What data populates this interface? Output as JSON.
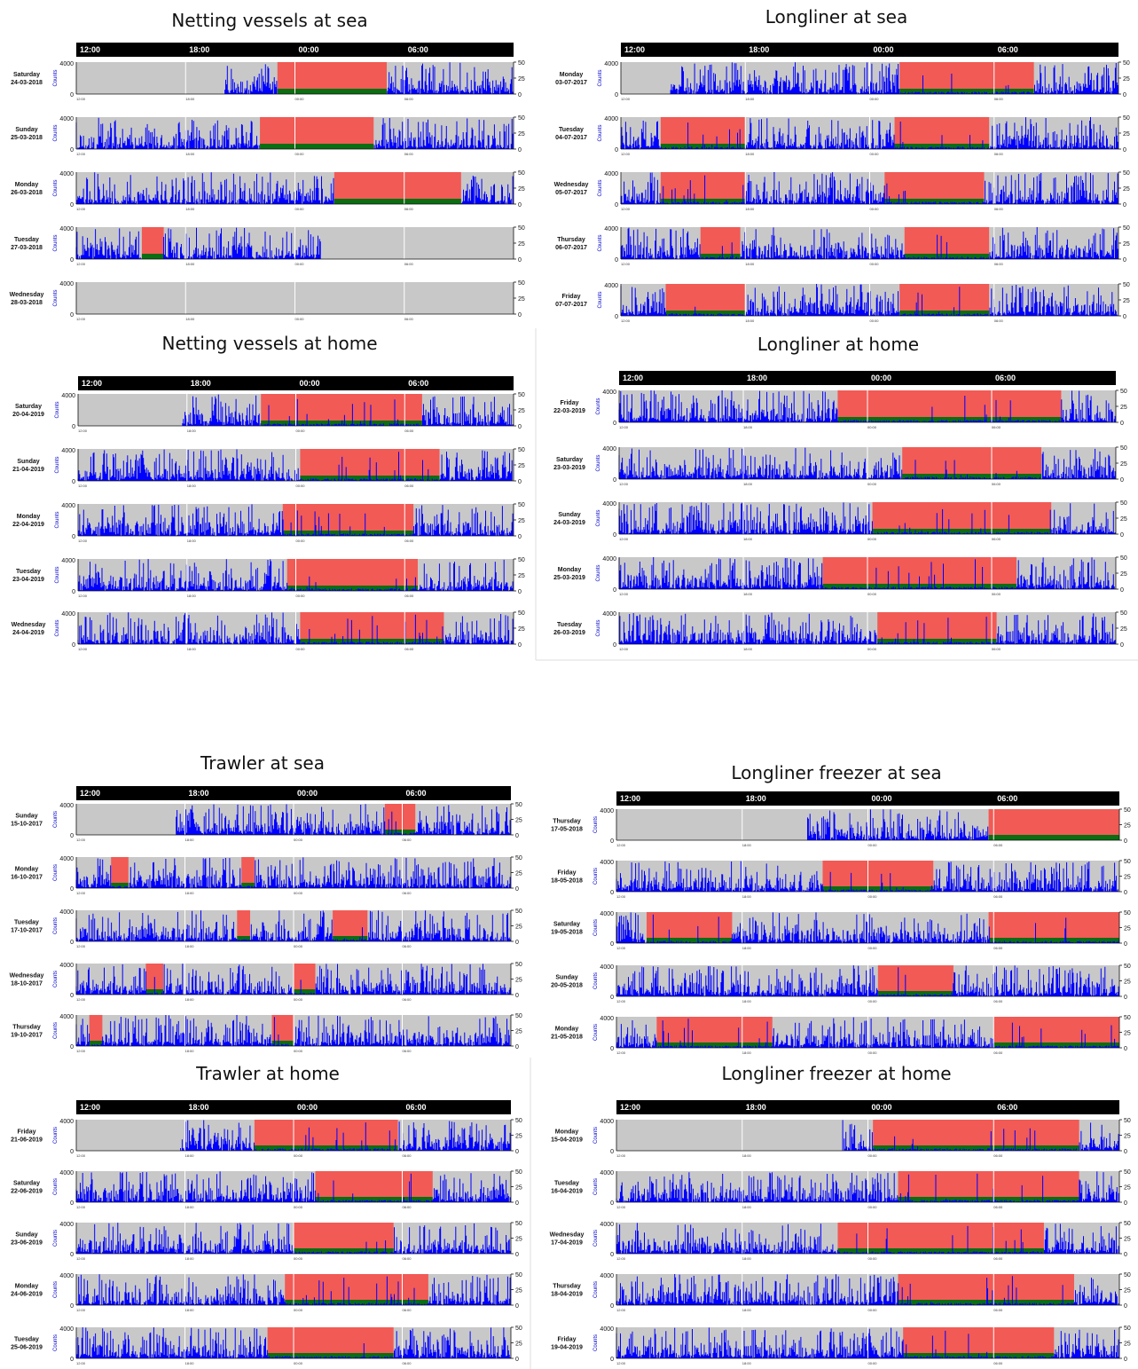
{
  "chart_data": [
    {
      "type": "area",
      "title": "Netting vessels at sea",
      "header_ticks": [
        "12:00",
        "18:00",
        "00:00",
        "06:00"
      ],
      "x_ticks": [
        "12:00",
        "18:00",
        "00:00",
        "06:00"
      ],
      "ylabel": "Counts",
      "ylim": [
        0,
        4000
      ],
      "y_ticks": [
        "0",
        "4000"
      ],
      "right_ylim": [
        0,
        50
      ],
      "right_ticks": [
        "0",
        "25",
        "50"
      ],
      "legend": null,
      "days": [
        {
          "weekday": "Saturday",
          "date": "24-03-2018",
          "night": [
            0.46,
            0.71
          ],
          "activity": [
            [
              0.34,
              0.46
            ],
            [
              0.71,
              1.0
            ]
          ]
        },
        {
          "weekday": "Sunday",
          "date": "25-03-2018",
          "night": [
            0.42,
            0.68
          ],
          "activity": [
            [
              0.0,
              0.42
            ],
            [
              0.68,
              1.0
            ]
          ]
        },
        {
          "weekday": "Monday",
          "date": "26-03-2018",
          "night": [
            0.59,
            0.88
          ],
          "activity": [
            [
              0.0,
              0.59
            ],
            [
              0.88,
              1.0
            ]
          ]
        },
        {
          "weekday": "Tuesday",
          "date": "27-03-2018",
          "night": [
            0.15,
            0.2
          ],
          "activity": [
            [
              0.0,
              0.15
            ],
            [
              0.2,
              0.56
            ]
          ]
        },
        {
          "weekday": "Wednesday",
          "date": "28-03-2018",
          "night": null,
          "activity": []
        }
      ]
    },
    {
      "type": "area",
      "title": "Longliner at sea",
      "header_ticks": [
        "12:00",
        "18:00",
        "00:00",
        "06:00"
      ],
      "x_ticks": [
        "12:00",
        "18:00",
        "00:00",
        "06:00"
      ],
      "ylabel": "Counts",
      "ylim": [
        0,
        4000
      ],
      "y_ticks": [
        "0",
        "4000"
      ],
      "right_ylim": [
        0,
        50
      ],
      "right_ticks": [
        "0",
        "25",
        "50"
      ],
      "legend": null,
      "days": [
        {
          "weekday": "Monday",
          "date": "03-07-2017",
          "night": [
            0.56,
            0.83
          ],
          "activity": [
            [
              0.1,
              1.0
            ]
          ]
        },
        {
          "weekday": "Tuesday",
          "date": "04-07-2017",
          "night": [
            0.08,
            0.25
          ],
          "activity": [
            [
              0.0,
              1.0
            ]
          ],
          "night2": [
            0.55,
            0.74
          ]
        },
        {
          "weekday": "Wednesday",
          "date": "05-07-2017",
          "night": [
            0.08,
            0.25
          ],
          "activity": [
            [
              0.0,
              1.0
            ]
          ],
          "night2": [
            0.53,
            0.73
          ]
        },
        {
          "weekday": "Thursday",
          "date": "06-07-2017",
          "night": [
            0.16,
            0.24
          ],
          "activity": [
            [
              0.0,
              1.0
            ]
          ],
          "night2": [
            0.57,
            0.74
          ]
        },
        {
          "weekday": "Friday",
          "date": "07-07-2017",
          "night": [
            0.09,
            0.25
          ],
          "activity": [
            [
              0.0,
              1.0
            ]
          ],
          "night2": [
            0.56,
            0.74
          ]
        }
      ]
    },
    {
      "type": "area",
      "title": "Netting vessels at home",
      "header_ticks": [
        "12:00",
        "18:00",
        "00:00",
        "06:00"
      ],
      "x_ticks": [
        "12:00",
        "18:00",
        "00:00",
        "06:00"
      ],
      "ylabel": "Counts",
      "ylim": [
        0,
        4000
      ],
      "y_ticks": [
        "0",
        "4000"
      ],
      "right_ylim": [
        0,
        50
      ],
      "right_ticks": [
        "0",
        "25",
        "50"
      ],
      "legend": null,
      "days": [
        {
          "weekday": "Saturday",
          "date": "20-04-2019",
          "night": [
            0.42,
            0.79
          ],
          "activity": [
            [
              0.24,
              1.0
            ]
          ]
        },
        {
          "weekday": "Sunday",
          "date": "21-04-2019",
          "night": [
            0.51,
            0.83
          ],
          "activity": [
            [
              0.0,
              1.0
            ]
          ]
        },
        {
          "weekday": "Monday",
          "date": "22-04-2019",
          "night": [
            0.47,
            0.77
          ],
          "activity": [
            [
              0.0,
              1.0
            ]
          ]
        },
        {
          "weekday": "Tuesday",
          "date": "23-04-2019",
          "night": [
            0.48,
            0.78
          ],
          "activity": [
            [
              0.0,
              1.0
            ]
          ]
        },
        {
          "weekday": "Wednesday",
          "date": "24-04-2019",
          "night": [
            0.51,
            0.84
          ],
          "activity": [
            [
              0.0,
              1.0
            ]
          ]
        }
      ]
    },
    {
      "type": "area",
      "title": "Longliner at home",
      "header_ticks": [
        "12:00",
        "18:00",
        "00:00",
        "06:00"
      ],
      "x_ticks": [
        "12:00",
        "18:00",
        "00:00",
        "06:00"
      ],
      "ylabel": "Counts",
      "ylim": [
        0,
        4000
      ],
      "y_ticks": [
        "0",
        "4000"
      ],
      "right_ylim": [
        0,
        50
      ],
      "right_ticks": [
        "0",
        "25",
        "50"
      ],
      "legend": null,
      "days": [
        {
          "weekday": "Friday",
          "date": "22-03-2019",
          "night": [
            0.44,
            0.89
          ],
          "activity": [
            [
              0.0,
              1.0
            ]
          ]
        },
        {
          "weekday": "Saturday",
          "date": "23-03-2019",
          "night": [
            0.57,
            0.85
          ],
          "activity": [
            [
              0.0,
              1.0
            ]
          ]
        },
        {
          "weekday": "Sunday",
          "date": "24-03-2019",
          "night": [
            0.51,
            0.87
          ],
          "activity": [
            [
              0.0,
              1.0
            ]
          ]
        },
        {
          "weekday": "Monday",
          "date": "25-03-2019",
          "night": [
            0.41,
            0.8
          ],
          "activity": [
            [
              0.0,
              1.0
            ]
          ]
        },
        {
          "weekday": "Tuesday",
          "date": "26-03-2019",
          "night": [
            0.52,
            0.76
          ],
          "activity": [
            [
              0.0,
              1.0
            ]
          ]
        }
      ]
    },
    {
      "type": "area",
      "title": "Trawler at sea",
      "header_ticks": [
        "12:00",
        "18:00",
        "00:00",
        "06:00"
      ],
      "x_ticks": [
        "12:00",
        "18:00",
        "00:00",
        "06:00"
      ],
      "ylabel": "Counts",
      "ylim": [
        0,
        4000
      ],
      "y_ticks": [
        "0",
        "4000"
      ],
      "right_ylim": [
        0,
        50
      ],
      "right_ticks": [
        "0",
        "25",
        "50"
      ],
      "legend": null,
      "days": [
        {
          "weekday": "Sunday",
          "date": "15-10-2017",
          "night": [
            0.71,
            0.78
          ],
          "activity": [
            [
              0.23,
              1.0
            ]
          ]
        },
        {
          "weekday": "Monday",
          "date": "16-10-2017",
          "night": [
            0.08,
            0.12
          ],
          "activity": [
            [
              0.0,
              1.0
            ]
          ],
          "night2": [
            0.38,
            0.41
          ]
        },
        {
          "weekday": "Tuesday",
          "date": "17-10-2017",
          "night": [
            0.37,
            0.4
          ],
          "activity": [
            [
              0.0,
              1.0
            ]
          ],
          "night2": [
            0.59,
            0.67
          ]
        },
        {
          "weekday": "Wednesday",
          "date": "18-10-2017",
          "night": [
            0.16,
            0.2
          ],
          "activity": [
            [
              0.0,
              1.0
            ]
          ],
          "night2": [
            0.5,
            0.55
          ]
        },
        {
          "weekday": "Thursday",
          "date": "19-10-2017",
          "night": [
            0.03,
            0.06
          ],
          "activity": [
            [
              0.0,
              1.0
            ]
          ],
          "night2": [
            0.45,
            0.5
          ]
        }
      ]
    },
    {
      "type": "area",
      "title": "Longliner freezer at sea",
      "header_ticks": [
        "12:00",
        "18:00",
        "00:00",
        "06:00"
      ],
      "x_ticks": [
        "12:00",
        "18:00",
        "00:00",
        "06:00"
      ],
      "ylabel": "Counts",
      "ylim": [
        0,
        4000
      ],
      "y_ticks": [
        "0",
        "4000"
      ],
      "right_ylim": [
        0,
        50
      ],
      "right_ticks": [
        "0",
        "25",
        "50"
      ],
      "legend": null,
      "days": [
        {
          "weekday": "Thursday",
          "date": "17-05-2018",
          "night": [
            0.74,
            1.0
          ],
          "activity": [
            [
              0.38,
              0.74
            ]
          ]
        },
        {
          "weekday": "Friday",
          "date": "18-05-2018",
          "night": [
            0.41,
            0.63
          ],
          "activity": [
            [
              0.0,
              1.0
            ]
          ]
        },
        {
          "weekday": "Saturday",
          "date": "19-05-2018",
          "night": [
            0.06,
            0.23
          ],
          "activity": [
            [
              0.0,
              1.0
            ]
          ],
          "night2": [
            0.74,
            1.0
          ]
        },
        {
          "weekday": "Sunday",
          "date": "20-05-2018",
          "night": [
            0.52,
            0.67
          ],
          "activity": [
            [
              0.0,
              1.0
            ]
          ]
        },
        {
          "weekday": "Monday",
          "date": "21-05-2018",
          "night": [
            0.08,
            0.31
          ],
          "activity": [
            [
              0.0,
              1.0
            ]
          ],
          "night2": [
            0.75,
            1.0
          ]
        }
      ]
    },
    {
      "type": "area",
      "title": "Trawler at home",
      "header_ticks": [
        "12:00",
        "18:00",
        "00:00",
        "06:00"
      ],
      "x_ticks": [
        "12:00",
        "18:00",
        "00:00",
        "06:00"
      ],
      "ylabel": "Counts",
      "ylim": [
        0,
        4000
      ],
      "y_ticks": [
        "0",
        "4000"
      ],
      "right_ylim": [
        0,
        50
      ],
      "right_ticks": [
        "0",
        "25",
        "50"
      ],
      "legend": null,
      "days": [
        {
          "weekday": "Friday",
          "date": "21-06-2019",
          "night": [
            0.41,
            0.74
          ],
          "activity": [
            [
              0.24,
              1.0
            ]
          ]
        },
        {
          "weekday": "Saturday",
          "date": "22-06-2019",
          "night": [
            0.55,
            0.82
          ],
          "activity": [
            [
              0.0,
              1.0
            ]
          ]
        },
        {
          "weekday": "Sunday",
          "date": "23-06-2019",
          "night": [
            0.5,
            0.73
          ],
          "activity": [
            [
              0.0,
              1.0
            ]
          ]
        },
        {
          "weekday": "Monday",
          "date": "24-06-2019",
          "night": [
            0.48,
            0.81
          ],
          "activity": [
            [
              0.0,
              1.0
            ]
          ]
        },
        {
          "weekday": "Tuesday",
          "date": "25-06-2019",
          "night": [
            0.44,
            0.73
          ],
          "activity": [
            [
              0.0,
              1.0
            ]
          ]
        }
      ]
    },
    {
      "type": "area",
      "title": "Longliner freezer at home",
      "header_ticks": [
        "12:00",
        "18:00",
        "00:00",
        "06:00"
      ],
      "x_ticks": [
        "12:00",
        "18:00",
        "00:00",
        "06:00"
      ],
      "ylabel": "Counts",
      "ylim": [
        0,
        4000
      ],
      "y_ticks": [
        "0",
        "4000"
      ],
      "right_ylim": [
        0,
        50
      ],
      "right_ticks": [
        "0",
        "25",
        "50"
      ],
      "legend": null,
      "days": [
        {
          "weekday": "Monday",
          "date": "15-04-2019",
          "night": [
            0.51,
            0.92
          ],
          "activity": [
            [
              0.45,
              1.0
            ]
          ]
        },
        {
          "weekday": "Tuesday",
          "date": "16-04-2019",
          "night": [
            0.56,
            0.92
          ],
          "activity": [
            [
              0.0,
              1.0
            ]
          ]
        },
        {
          "weekday": "Wednesday",
          "date": "17-04-2019",
          "night": [
            0.44,
            0.85
          ],
          "activity": [
            [
              0.0,
              1.0
            ]
          ]
        },
        {
          "weekday": "Thursday",
          "date": "18-04-2019",
          "night": [
            0.56,
            0.91
          ],
          "activity": [
            [
              0.0,
              1.0
            ]
          ]
        },
        {
          "weekday": "Friday",
          "date": "19-04-2019",
          "night": [
            0.57,
            0.87
          ],
          "activity": [
            [
              0.0,
              1.0
            ]
          ]
        }
      ]
    }
  ],
  "colors": {
    "night": "#f25a55",
    "background": "#c8c8c8",
    "counts": "#0000ff",
    "resting": "#0a6e12",
    "header": "#000000"
  }
}
